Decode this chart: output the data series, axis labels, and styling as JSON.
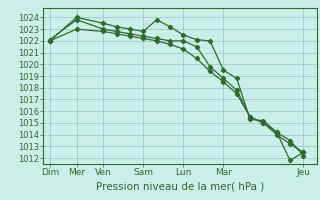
{
  "background_color": "#cceee8",
  "grid_color": "#99cccc",
  "line_color": "#2d6a2d",
  "marker_color": "#2d6a2d",
  "ylabel_values": [
    1012,
    1013,
    1014,
    1015,
    1016,
    1017,
    1018,
    1019,
    1020,
    1021,
    1022,
    1023,
    1024
  ],
  "ylim": [
    1011.5,
    1024.8
  ],
  "xlabel": "Pression niveau de la mer( hPa )",
  "xtick_labels": [
    "Dim",
    "Mer",
    "Ven",
    "Sam",
    "Lun",
    "Mar",
    "Jeu"
  ],
  "xtick_positions": [
    0,
    2,
    4,
    7,
    10,
    13,
    19
  ],
  "series1_x": [
    0,
    2,
    4,
    5,
    6,
    7,
    8,
    9,
    10,
    11,
    12,
    13,
    14,
    15,
    16,
    17,
    18,
    19
  ],
  "series1_y": [
    1022.0,
    1024.0,
    1023.5,
    1023.2,
    1023.0,
    1022.8,
    1023.8,
    1023.2,
    1022.5,
    1022.1,
    1022.0,
    1019.5,
    1018.8,
    1015.3,
    1015.2,
    1014.2,
    1013.5,
    1012.2
  ],
  "series2_x": [
    0,
    2,
    4,
    5,
    6,
    7,
    8,
    9,
    10,
    11,
    12,
    13,
    14,
    15,
    16,
    17,
    18,
    19
  ],
  "series2_y": [
    1022.1,
    1023.8,
    1023.0,
    1022.8,
    1022.6,
    1022.4,
    1022.2,
    1022.0,
    1022.0,
    1021.5,
    1019.8,
    1018.8,
    1017.8,
    1015.5,
    1015.0,
    1014.0,
    1013.2,
    1012.5
  ],
  "series3_x": [
    0,
    2,
    4,
    5,
    6,
    7,
    8,
    9,
    10,
    11,
    12,
    13,
    14,
    15,
    16,
    17,
    18,
    19
  ],
  "series3_y": [
    1022.0,
    1023.0,
    1022.8,
    1022.6,
    1022.4,
    1022.2,
    1022.0,
    1021.7,
    1021.3,
    1020.5,
    1019.4,
    1018.5,
    1017.5,
    1015.5,
    1015.0,
    1014.2,
    1011.8,
    1012.5
  ],
  "figsize": [
    3.2,
    2.0
  ],
  "dpi": 100
}
